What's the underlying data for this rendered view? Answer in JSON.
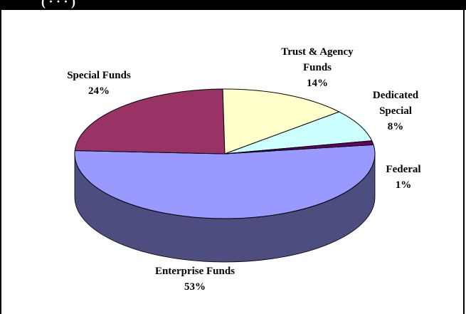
{
  "header": {
    "clipped_title": "(                                                    ·      ·       ·       )"
  },
  "chart_data": {
    "type": "pie",
    "style": "3d",
    "title": "",
    "slices": [
      {
        "label_lines": [
          "Enterprise Funds",
          "53%"
        ],
        "value": 53,
        "color": "#9999FF"
      },
      {
        "label_lines": [
          "Special Funds",
          "24%"
        ],
        "value": 24,
        "color": "#993366"
      },
      {
        "label_lines": [
          "Trust & Agency",
          "Funds",
          "14%"
        ],
        "value": 14,
        "color": "#FFFFCC"
      },
      {
        "label_lines": [
          "Dedicated",
          "Special",
          "8%"
        ],
        "value": 8,
        "color": "#CCFFFF"
      },
      {
        "label_lines": [
          "Federal",
          "1%"
        ],
        "value": 1,
        "color": "#660066"
      }
    ]
  }
}
